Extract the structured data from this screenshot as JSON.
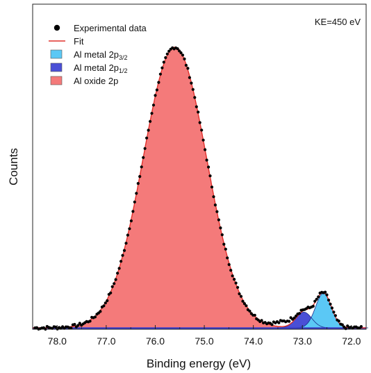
{
  "chart_data": {
    "type": "area",
    "xlabel": "Binding energy (eV)",
    "ylabel": "Counts",
    "xlim": [
      78.5,
      71.7
    ],
    "ylim": [
      0,
      1.0
    ],
    "x_reversed": true,
    "x_ticks": [
      78.0,
      77.0,
      76.0,
      75.0,
      74.0,
      73.0,
      72.0
    ],
    "x_tick_labels": [
      "78.0",
      "77.0",
      "76.0",
      "75.0",
      "74.0",
      "73.0",
      "72.0"
    ],
    "annotation": "KE=450 eV",
    "legend_position": "top-left",
    "legend": [
      {
        "key": "data",
        "kind": "marker",
        "label": "Experimental data",
        "sub": "",
        "color": "#000000"
      },
      {
        "key": "fit",
        "kind": "line",
        "label": "Fit",
        "sub": "",
        "color": "#e0302c"
      },
      {
        "key": "metal32",
        "kind": "patch",
        "label": "Al metal 2p",
        "sub": "3/2",
        "color": "#5bc8f5"
      },
      {
        "key": "metal12",
        "kind": "patch",
        "label": "Al metal 2p",
        "sub": "1/2",
        "color": "#4a4fd6"
      },
      {
        "key": "oxide",
        "kind": "patch",
        "label": "Al oxide 2p",
        "sub": "",
        "color": "#f47a7a"
      }
    ],
    "background_level": 0.005,
    "components": [
      {
        "key": "oxide",
        "center": 75.6,
        "fwhm": 1.52,
        "amplitude": 1.0,
        "color": "#f47a7a"
      },
      {
        "key": "metal12",
        "center": 72.97,
        "fwhm": 0.38,
        "amplitude": 0.056,
        "color": "#4a4fd6"
      },
      {
        "key": "metal32",
        "center": 72.57,
        "fwhm": 0.38,
        "amplitude": 0.123,
        "color": "#5bc8f5"
      }
    ],
    "data_points": {
      "x_start": 78.45,
      "x_end": 71.78,
      "step": 0.035
    }
  }
}
